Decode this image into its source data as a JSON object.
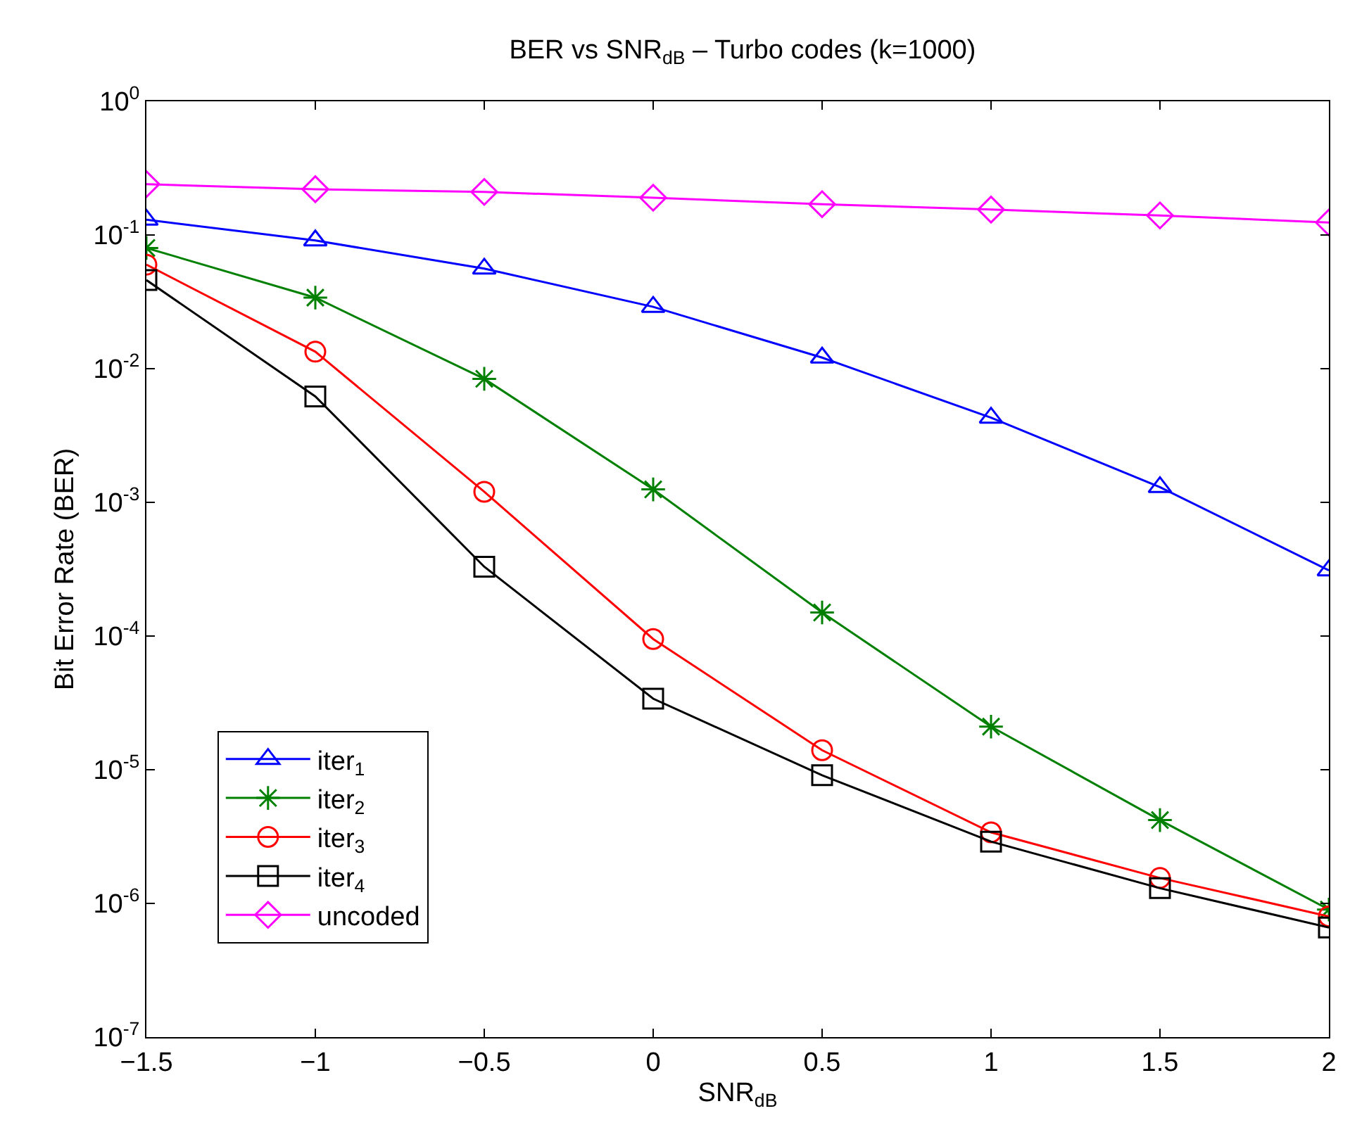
{
  "chart_data": {
    "type": "line",
    "title": "BER vs SNR$_{dB}$ – Turbo codes (k=1000)",
    "xlabel": "SNR$_{dB}$",
    "ylabel": "Bit Error Rate (BER)",
    "x": [
      -1.5,
      -1,
      -0.5,
      0,
      0.5,
      1,
      1.5,
      2
    ],
    "series": [
      {
        "name": "iter$_{1}$",
        "color": "#0000ff",
        "marker": "triangle",
        "values": [
          0.13,
          0.091,
          0.056,
          0.029,
          0.0121,
          0.0043,
          0.0013,
          0.00031
        ]
      },
      {
        "name": "iter$_{2}$",
        "color": "#008000",
        "marker": "cross",
        "values": [
          0.08,
          0.034,
          0.0084,
          0.00125,
          0.00015,
          2.1e-05,
          4.2e-06,
          9e-07
        ]
      },
      {
        "name": "iter$_{3}$",
        "color": "#ff0000",
        "marker": "circle",
        "values": [
          0.06,
          0.0134,
          0.0012,
          9.5e-05,
          1.4e-05,
          3.4e-06,
          1.55e-06,
          8e-07
        ]
      },
      {
        "name": "iter$_{4}$",
        "color": "#000000",
        "marker": "square",
        "values": [
          0.046,
          0.0062,
          0.00033,
          3.4e-05,
          9.1e-06,
          2.9e-06,
          1.3e-06,
          6.6e-07
        ]
      },
      {
        "name": "uncoded",
        "color": "#ff00ff",
        "marker": "diamond",
        "values": [
          0.24,
          0.22,
          0.21,
          0.19,
          0.17,
          0.155,
          0.14,
          0.124
        ]
      }
    ],
    "log": "y",
    "legend": "bottom left",
    "line_style": "solid",
    "xlim": [
      -1.5,
      2
    ],
    "xticks": [
      {
        "value": -1.5,
        "label": "−1.5"
      },
      {
        "value": -1,
        "label": "−1"
      },
      {
        "value": -0.5,
        "label": "−0.5"
      },
      0,
      0.5,
      1,
      1.5,
      2
    ],
    "ylim": [
      1e-07,
      1
    ],
    "yticks": [
      {
        "value": 1e-07,
        "label": "10$^{-7}$"
      },
      {
        "value": 1e-06,
        "label": "10$^{-6}$"
      },
      {
        "value": 1e-05,
        "label": "10$^{-5}$"
      },
      {
        "value": 0.0001,
        "label": "10$^{-4}$"
      },
      {
        "value": 0.001,
        "label": "10$^{-3}$"
      },
      {
        "value": 0.01,
        "label": "10$^{-2}$"
      },
      {
        "value": 0.1,
        "label": "10$^{-1}$"
      },
      {
        "value": 1,
        "label": "10$^{0}$"
      }
    ]
  }
}
